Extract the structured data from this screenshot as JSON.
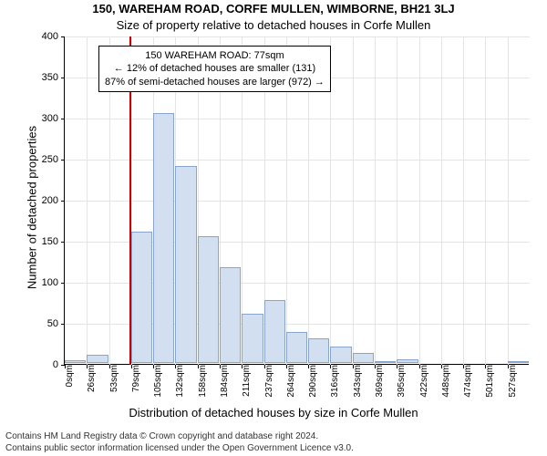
{
  "title": "150, WAREHAM ROAD, CORFE MULLEN, WIMBORNE, BH21 3LJ",
  "subtitle": "Size of property relative to detached houses in Corfe Mullen",
  "ylabel": "Number of detached properties",
  "xlabel": "Distribution of detached houses by size in Corfe Mullen",
  "footer_line1": "Contains HM Land Registry data © Crown copyright and database right 2024.",
  "footer_line2": "Contains public sector information licensed under the Open Government Licence v3.0.",
  "annotation": {
    "line1": "150 WAREHAM ROAD: 77sqm",
    "line2": "← 12% of detached houses are smaller (131)",
    "line3": "87% of semi-detached houses are larger (972) →"
  },
  "chart": {
    "type": "histogram",
    "ylim": [
      0,
      400
    ],
    "ytick_step": 50,
    "categories": [
      "0sqm",
      "26sqm",
      "53sqm",
      "79sqm",
      "105sqm",
      "132sqm",
      "158sqm",
      "184sqm",
      "211sqm",
      "237sqm",
      "264sqm",
      "290sqm",
      "316sqm",
      "343sqm",
      "369sqm",
      "395sqm",
      "422sqm",
      "448sqm",
      "474sqm",
      "501sqm",
      "527sqm"
    ],
    "values": [
      3,
      10,
      0,
      160,
      305,
      240,
      155,
      117,
      60,
      77,
      38,
      30,
      20,
      12,
      2,
      5,
      0,
      0,
      0,
      0,
      2
    ],
    "bar_color": "#d2dff0",
    "bar_border": "#8aa4cc",
    "grid_color": "#e4e4e4",
    "background_color": "#ffffff",
    "marker": {
      "x_index": 2.92,
      "color": "#cc0000"
    },
    "title_fontsize": 13,
    "label_fontsize": 13,
    "tick_fontsize": 11
  }
}
